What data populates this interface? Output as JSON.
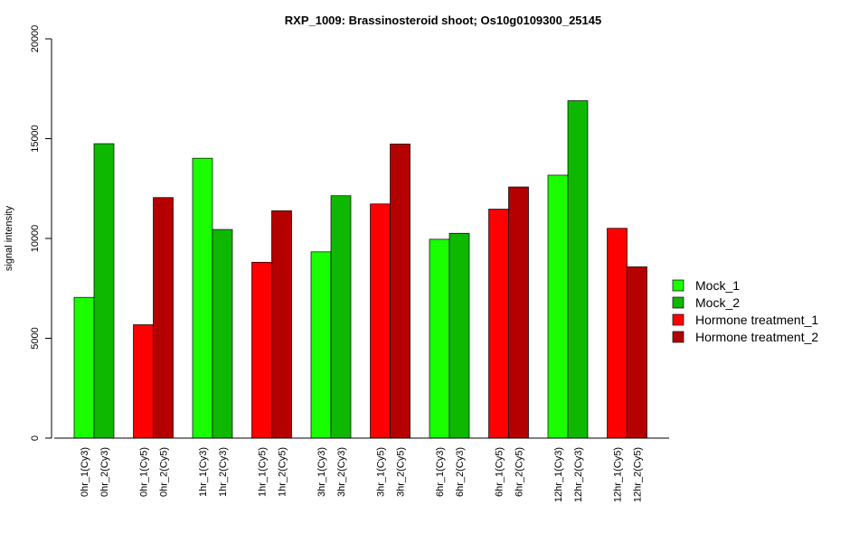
{
  "chart_data": {
    "type": "bar",
    "title": "RXP_1009: Brassinosteroid shoot; Os10g0109300_25145",
    "xlabel": "",
    "ylabel": "signal intensity",
    "ylim": [
      0,
      20000
    ],
    "yticks": [
      0,
      5000,
      10000,
      15000,
      20000
    ],
    "legend_position": "right",
    "series": [
      {
        "name": "Mock_1",
        "color": "#19ff00"
      },
      {
        "name": "Mock_2",
        "color": "#0fb800"
      },
      {
        "name": "Hormone treatment_1",
        "color": "#ff0000"
      },
      {
        "name": "Hormone treatment_2",
        "color": "#b50000"
      }
    ],
    "groups": [
      {
        "bars": [
          {
            "label": "0hr_1(Cy3)",
            "value": 7050,
            "series": 0
          },
          {
            "label": "0hr_2(Cy3)",
            "value": 14750,
            "series": 1
          }
        ]
      },
      {
        "bars": [
          {
            "label": "0hr_1(Cy5)",
            "value": 5680,
            "series": 2
          },
          {
            "label": "0hr_2(Cy5)",
            "value": 12050,
            "series": 3
          }
        ]
      },
      {
        "bars": [
          {
            "label": "1hr_1(Cy3)",
            "value": 14020,
            "series": 0
          },
          {
            "label": "1hr_2(Cy3)",
            "value": 10450,
            "series": 1
          }
        ]
      },
      {
        "bars": [
          {
            "label": "1hr_1(Cy5)",
            "value": 8810,
            "series": 2
          },
          {
            "label": "1hr_2(Cy5)",
            "value": 11390,
            "series": 3
          }
        ]
      },
      {
        "bars": [
          {
            "label": "3hr_1(Cy3)",
            "value": 9330,
            "series": 0
          },
          {
            "label": "3hr_2(Cy3)",
            "value": 12140,
            "series": 1
          }
        ]
      },
      {
        "bars": [
          {
            "label": "3hr_1(Cy5)",
            "value": 11730,
            "series": 2
          },
          {
            "label": "3hr_2(Cy5)",
            "value": 14730,
            "series": 3
          }
        ]
      },
      {
        "bars": [
          {
            "label": "6hr_1(Cy3)",
            "value": 9960,
            "series": 0
          },
          {
            "label": "6hr_2(Cy3)",
            "value": 10260,
            "series": 1
          }
        ]
      },
      {
        "bars": [
          {
            "label": "6hr_1(Cy5)",
            "value": 11470,
            "series": 2
          },
          {
            "label": "6hr_2(Cy5)",
            "value": 12580,
            "series": 3
          }
        ]
      },
      {
        "bars": [
          {
            "label": "12hr_1(Cy3)",
            "value": 13170,
            "series": 0
          },
          {
            "label": "12hr_2(Cy3)",
            "value": 16900,
            "series": 1
          }
        ]
      },
      {
        "bars": [
          {
            "label": "12hr_1(Cy5)",
            "value": 10510,
            "series": 2
          },
          {
            "label": "12hr_2(Cy5)",
            "value": 8580,
            "series": 3
          }
        ]
      }
    ]
  }
}
